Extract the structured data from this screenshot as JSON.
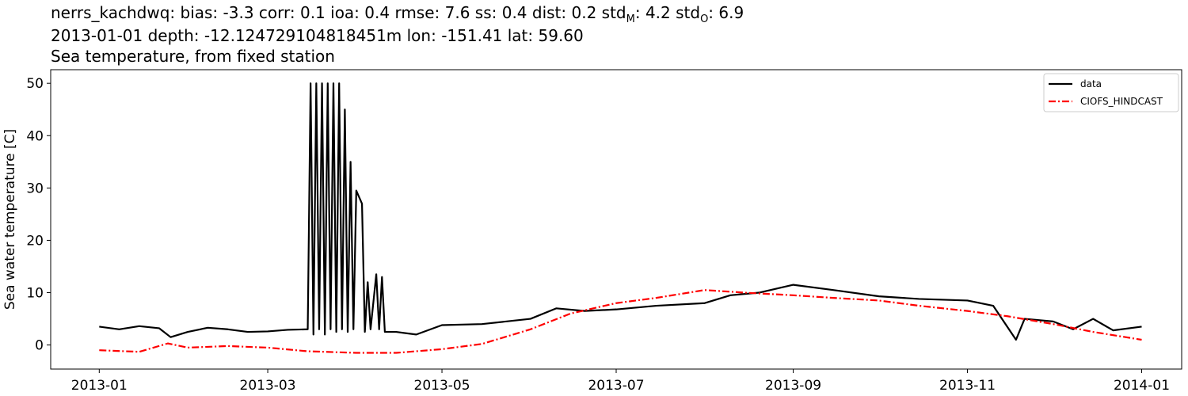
{
  "title": {
    "line1_prefix": "nerrs_kachdwq: bias: -3.3  corr: 0.1  ioa: 0.4  rmse: 7.6  ss: 0.4  dist: 0.2  std",
    "line1_sub1": "M",
    "line1_mid": ": 4.2  std",
    "line1_sub2": "O",
    "line1_suffix": ": 6.9",
    "line2": "2013-01-01 depth: -12.124729104818451m lon: -151.41 lat: 59.60",
    "line3": "Sea temperature, from fixed station"
  },
  "chart_data": {
    "type": "line",
    "xlabel": "",
    "ylabel": "Sea water temperature [C]",
    "xlim": [
      "2012-12-15",
      "2014-01-15"
    ],
    "ylim": [
      -4.6,
      52.6
    ],
    "x_ticks": [
      "2013-01",
      "2013-03",
      "2013-05",
      "2013-07",
      "2013-09",
      "2013-11",
      "2014-01"
    ],
    "y_ticks": [
      0,
      10,
      20,
      30,
      40,
      50
    ],
    "grid": false,
    "legend": "top-right",
    "series": [
      {
        "name": "data",
        "color": "#000000",
        "style": "solid",
        "points": [
          [
            "2013-01-01",
            3.5
          ],
          [
            "2013-01-08",
            3.0
          ],
          [
            "2013-01-15",
            3.6
          ],
          [
            "2013-01-22",
            3.2
          ],
          [
            "2013-01-26",
            1.5
          ],
          [
            "2013-02-01",
            2.5
          ],
          [
            "2013-02-08",
            3.3
          ],
          [
            "2013-02-15",
            3.0
          ],
          [
            "2013-02-22",
            2.5
          ],
          [
            "2013-03-01",
            2.6
          ],
          [
            "2013-03-08",
            2.9
          ],
          [
            "2013-03-15",
            3.0
          ],
          [
            "2013-03-16",
            50.0
          ],
          [
            "2013-03-17",
            2.0
          ],
          [
            "2013-03-18",
            50.0
          ],
          [
            "2013-03-19",
            3.0
          ],
          [
            "2013-03-20",
            50.0
          ],
          [
            "2013-03-21",
            2.0
          ],
          [
            "2013-03-22",
            50.0
          ],
          [
            "2013-03-23",
            3.0
          ],
          [
            "2013-03-24",
            50.0
          ],
          [
            "2013-03-25",
            2.5
          ],
          [
            "2013-03-26",
            50.0
          ],
          [
            "2013-03-27",
            3.0
          ],
          [
            "2013-03-28",
            45.0
          ],
          [
            "2013-03-29",
            2.5
          ],
          [
            "2013-03-30",
            35.0
          ],
          [
            "2013-03-31",
            3.0
          ],
          [
            "2013-04-01",
            29.5
          ],
          [
            "2013-04-03",
            27.0
          ],
          [
            "2013-04-04",
            2.5
          ],
          [
            "2013-04-05",
            12.0
          ],
          [
            "2013-04-06",
            3.0
          ],
          [
            "2013-04-08",
            13.5
          ],
          [
            "2013-04-09",
            3.0
          ],
          [
            "2013-04-10",
            13.0
          ],
          [
            "2013-04-11",
            2.5
          ],
          [
            "2013-04-15",
            2.5
          ],
          [
            "2013-04-22",
            2.0
          ],
          [
            "2013-05-01",
            3.8
          ],
          [
            "2013-05-15",
            4.0
          ],
          [
            "2013-06-01",
            5.0
          ],
          [
            "2013-06-10",
            7.0
          ],
          [
            "2013-06-20",
            6.5
          ],
          [
            "2013-07-01",
            6.8
          ],
          [
            "2013-07-15",
            7.5
          ],
          [
            "2013-08-01",
            8.0
          ],
          [
            "2013-08-10",
            9.5
          ],
          [
            "2013-08-20",
            10.0
          ],
          [
            "2013-09-01",
            11.5
          ],
          [
            "2013-09-15",
            10.5
          ],
          [
            "2013-10-01",
            9.3
          ],
          [
            "2013-10-15",
            8.8
          ],
          [
            "2013-11-01",
            8.5
          ],
          [
            "2013-11-10",
            7.5
          ],
          [
            "2013-11-18",
            1.0
          ],
          [
            "2013-11-21",
            5.0
          ],
          [
            "2013-12-01",
            4.5
          ],
          [
            "2013-12-08",
            3.0
          ],
          [
            "2013-12-15",
            5.0
          ],
          [
            "2013-12-22",
            2.8
          ],
          [
            "2014-01-01",
            3.5
          ]
        ]
      },
      {
        "name": "CIOFS_HINDCAST",
        "color": "#ff0000",
        "style": "dashdot",
        "points": [
          [
            "2013-01-01",
            -1.0
          ],
          [
            "2013-01-15",
            -1.3
          ],
          [
            "2013-01-25",
            0.3
          ],
          [
            "2013-02-01",
            -0.5
          ],
          [
            "2013-02-15",
            -0.2
          ],
          [
            "2013-03-01",
            -0.5
          ],
          [
            "2013-03-15",
            -1.2
          ],
          [
            "2013-04-01",
            -1.5
          ],
          [
            "2013-04-15",
            -1.5
          ],
          [
            "2013-05-01",
            -0.8
          ],
          [
            "2013-05-15",
            0.2
          ],
          [
            "2013-06-01",
            3.0
          ],
          [
            "2013-06-15",
            6.0
          ],
          [
            "2013-07-01",
            8.0
          ],
          [
            "2013-07-15",
            9.0
          ],
          [
            "2013-08-01",
            10.5
          ],
          [
            "2013-08-15",
            10.0
          ],
          [
            "2013-09-01",
            9.5
          ],
          [
            "2013-09-15",
            9.0
          ],
          [
            "2013-10-01",
            8.5
          ],
          [
            "2013-10-15",
            7.5
          ],
          [
            "2013-11-01",
            6.5
          ],
          [
            "2013-11-15",
            5.5
          ],
          [
            "2013-12-01",
            4.0
          ],
          [
            "2013-12-15",
            2.5
          ],
          [
            "2014-01-01",
            1.0
          ]
        ]
      }
    ]
  }
}
